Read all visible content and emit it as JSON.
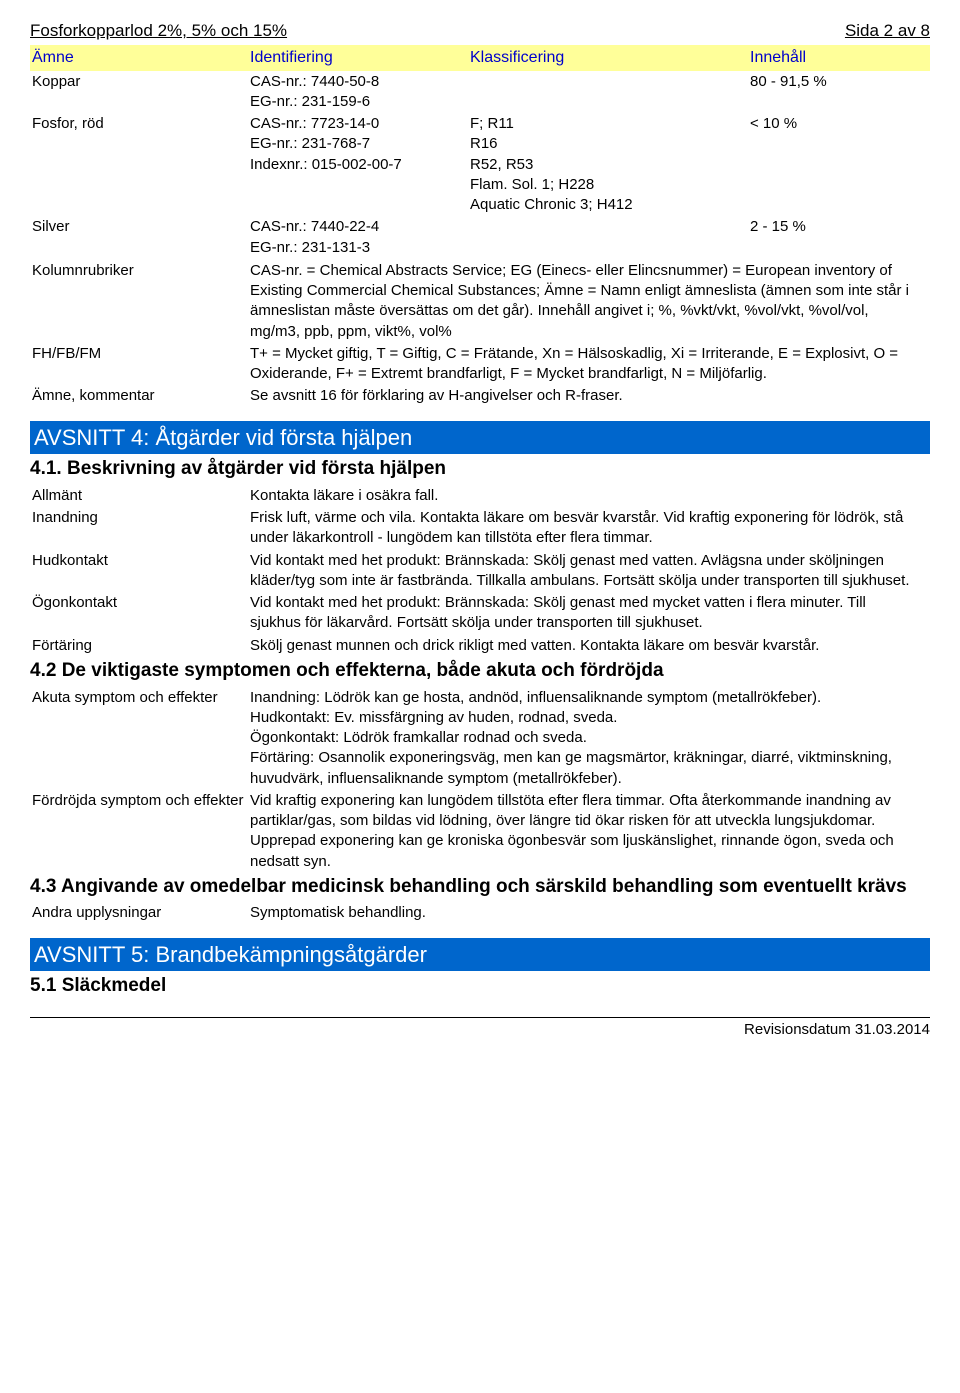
{
  "header": {
    "title": "Fosforkopparlod 2%, 5% och 15%",
    "page": "Sida 2 av 8"
  },
  "table": {
    "headers": {
      "c1": "Ämne",
      "c2": "Identifiering",
      "c3": "Klassificering",
      "c4": "Innehåll"
    },
    "rows": [
      {
        "c1": "Koppar",
        "c2": [
          "CAS-nr.: 7440-50-8",
          "EG-nr.: 231-159-6"
        ],
        "c3": [],
        "c4": "80 - 91,5 %"
      },
      {
        "c1": "Fosfor, röd",
        "c2": [
          "CAS-nr.: 7723-14-0",
          "EG-nr.: 231-768-7",
          "Indexnr.: 015-002-00-7"
        ],
        "c3": [
          "F; R11",
          "R16",
          "R52, R53",
          "Flam. Sol. 1; H228",
          "Aquatic Chronic 3; H412"
        ],
        "c4": "< 10 %"
      },
      {
        "c1": "Silver",
        "c2": [
          "CAS-nr.: 7440-22-4",
          "EG-nr.: 231-131-3"
        ],
        "c3": [],
        "c4": "2 - 15 %"
      }
    ],
    "defs": [
      {
        "label": "Kolumnrubriker",
        "text": "CAS-nr. = Chemical Abstracts Service; EG (Einecs- eller Elincsnummer) = European inventory of Existing Commercial Chemical Substances; Ämne = Namn enligt ämneslista (ämnen som inte står i ämneslistan måste översättas om det går). Innehåll angivet i; %, %vkt/vkt, %vol/vkt, %vol/vol, mg/m3, ppb, ppm, vikt%, vol%"
      },
      {
        "label": "FH/FB/FM",
        "text": "T+ = Mycket giftig, T = Giftig, C = Frätande, Xn = Hälsoskadlig, Xi = Irriterande, E = Explosivt, O = Oxiderande, F+ = Extremt brandfarligt, F = Mycket brandfarligt, N = Miljöfarlig."
      },
      {
        "label": "Ämne, kommentar",
        "text": "Se avsnitt 16 för förklaring av H-angivelser och R-fraser."
      }
    ]
  },
  "section4": {
    "title": "AVSNITT 4: Åtgärder vid första hjälpen",
    "s41": {
      "heading": "4.1. Beskrivning av åtgärder vid första hjälpen",
      "items": [
        {
          "label": "Allmänt",
          "text": "Kontakta läkare i osäkra fall."
        },
        {
          "label": "Inandning",
          "text": "Frisk luft, värme och vila. Kontakta läkare om besvär kvarstår. Vid kraftig exponering för lödrök, stå under läkarkontroll - lungödem kan tillstöta efter flera timmar."
        },
        {
          "label": "Hudkontakt",
          "text": "Vid kontakt med het produkt: Brännskada: Skölj genast med vatten. Avlägsna under sköljningen kläder/tyg som inte är fastbrända. Tillkalla ambulans. Fortsätt skölja under transporten till sjukhuset."
        },
        {
          "label": "Ögonkontakt",
          "text": "Vid kontakt med het produkt: Brännskada: Skölj genast med mycket vatten i flera minuter. Till sjukhus för läkarvård. Fortsätt skölja under transporten till sjukhuset."
        },
        {
          "label": "Förtäring",
          "text": "Skölj genast munnen och drick rikligt med vatten. Kontakta läkare om besvär kvarstår."
        }
      ]
    },
    "s42": {
      "heading": "4.2 De viktigaste symptomen och effekterna, både akuta och fördröjda",
      "items": [
        {
          "label": "Akuta symptom och effekter",
          "text": "Inandning: Lödrök kan ge hosta, andnöd, influensaliknande symptom (metallrökfeber).\nHudkontakt: Ev. missfärgning av huden, rodnad, sveda.\nÖgonkontakt: Lödrök framkallar rodnad och sveda.\nFörtäring: Osannolik exponeringsväg, men kan ge magsmärtor, kräkningar, diarré, viktminskning, huvudvärk, influensaliknande symptom (metallrökfeber)."
        },
        {
          "label": "Fördröjda symptom och effekter",
          "text": "Vid kraftig exponering kan lungödem tillstöta efter flera timmar. Ofta återkommande inandning av partiklar/gas, som bildas vid lödning, över längre tid ökar risken för att utveckla lungsjukdomar. Upprepad exponering kan ge kroniska ögonbesvär som ljuskänslighet, rinnande ögon, sveda och nedsatt syn."
        }
      ]
    },
    "s43": {
      "heading": "4.3 Angivande av omedelbar medicinsk behandling och särskild behandling som eventuellt krävs",
      "items": [
        {
          "label": "Andra upplysningar",
          "text": "Symptomatisk behandling."
        }
      ]
    }
  },
  "section5": {
    "title": "AVSNITT 5: Brandbekämpningsåtgärder",
    "s51": {
      "heading": "5.1 Släckmedel"
    }
  },
  "footer": {
    "revision": "Revisionsdatum 31.03.2014"
  }
}
